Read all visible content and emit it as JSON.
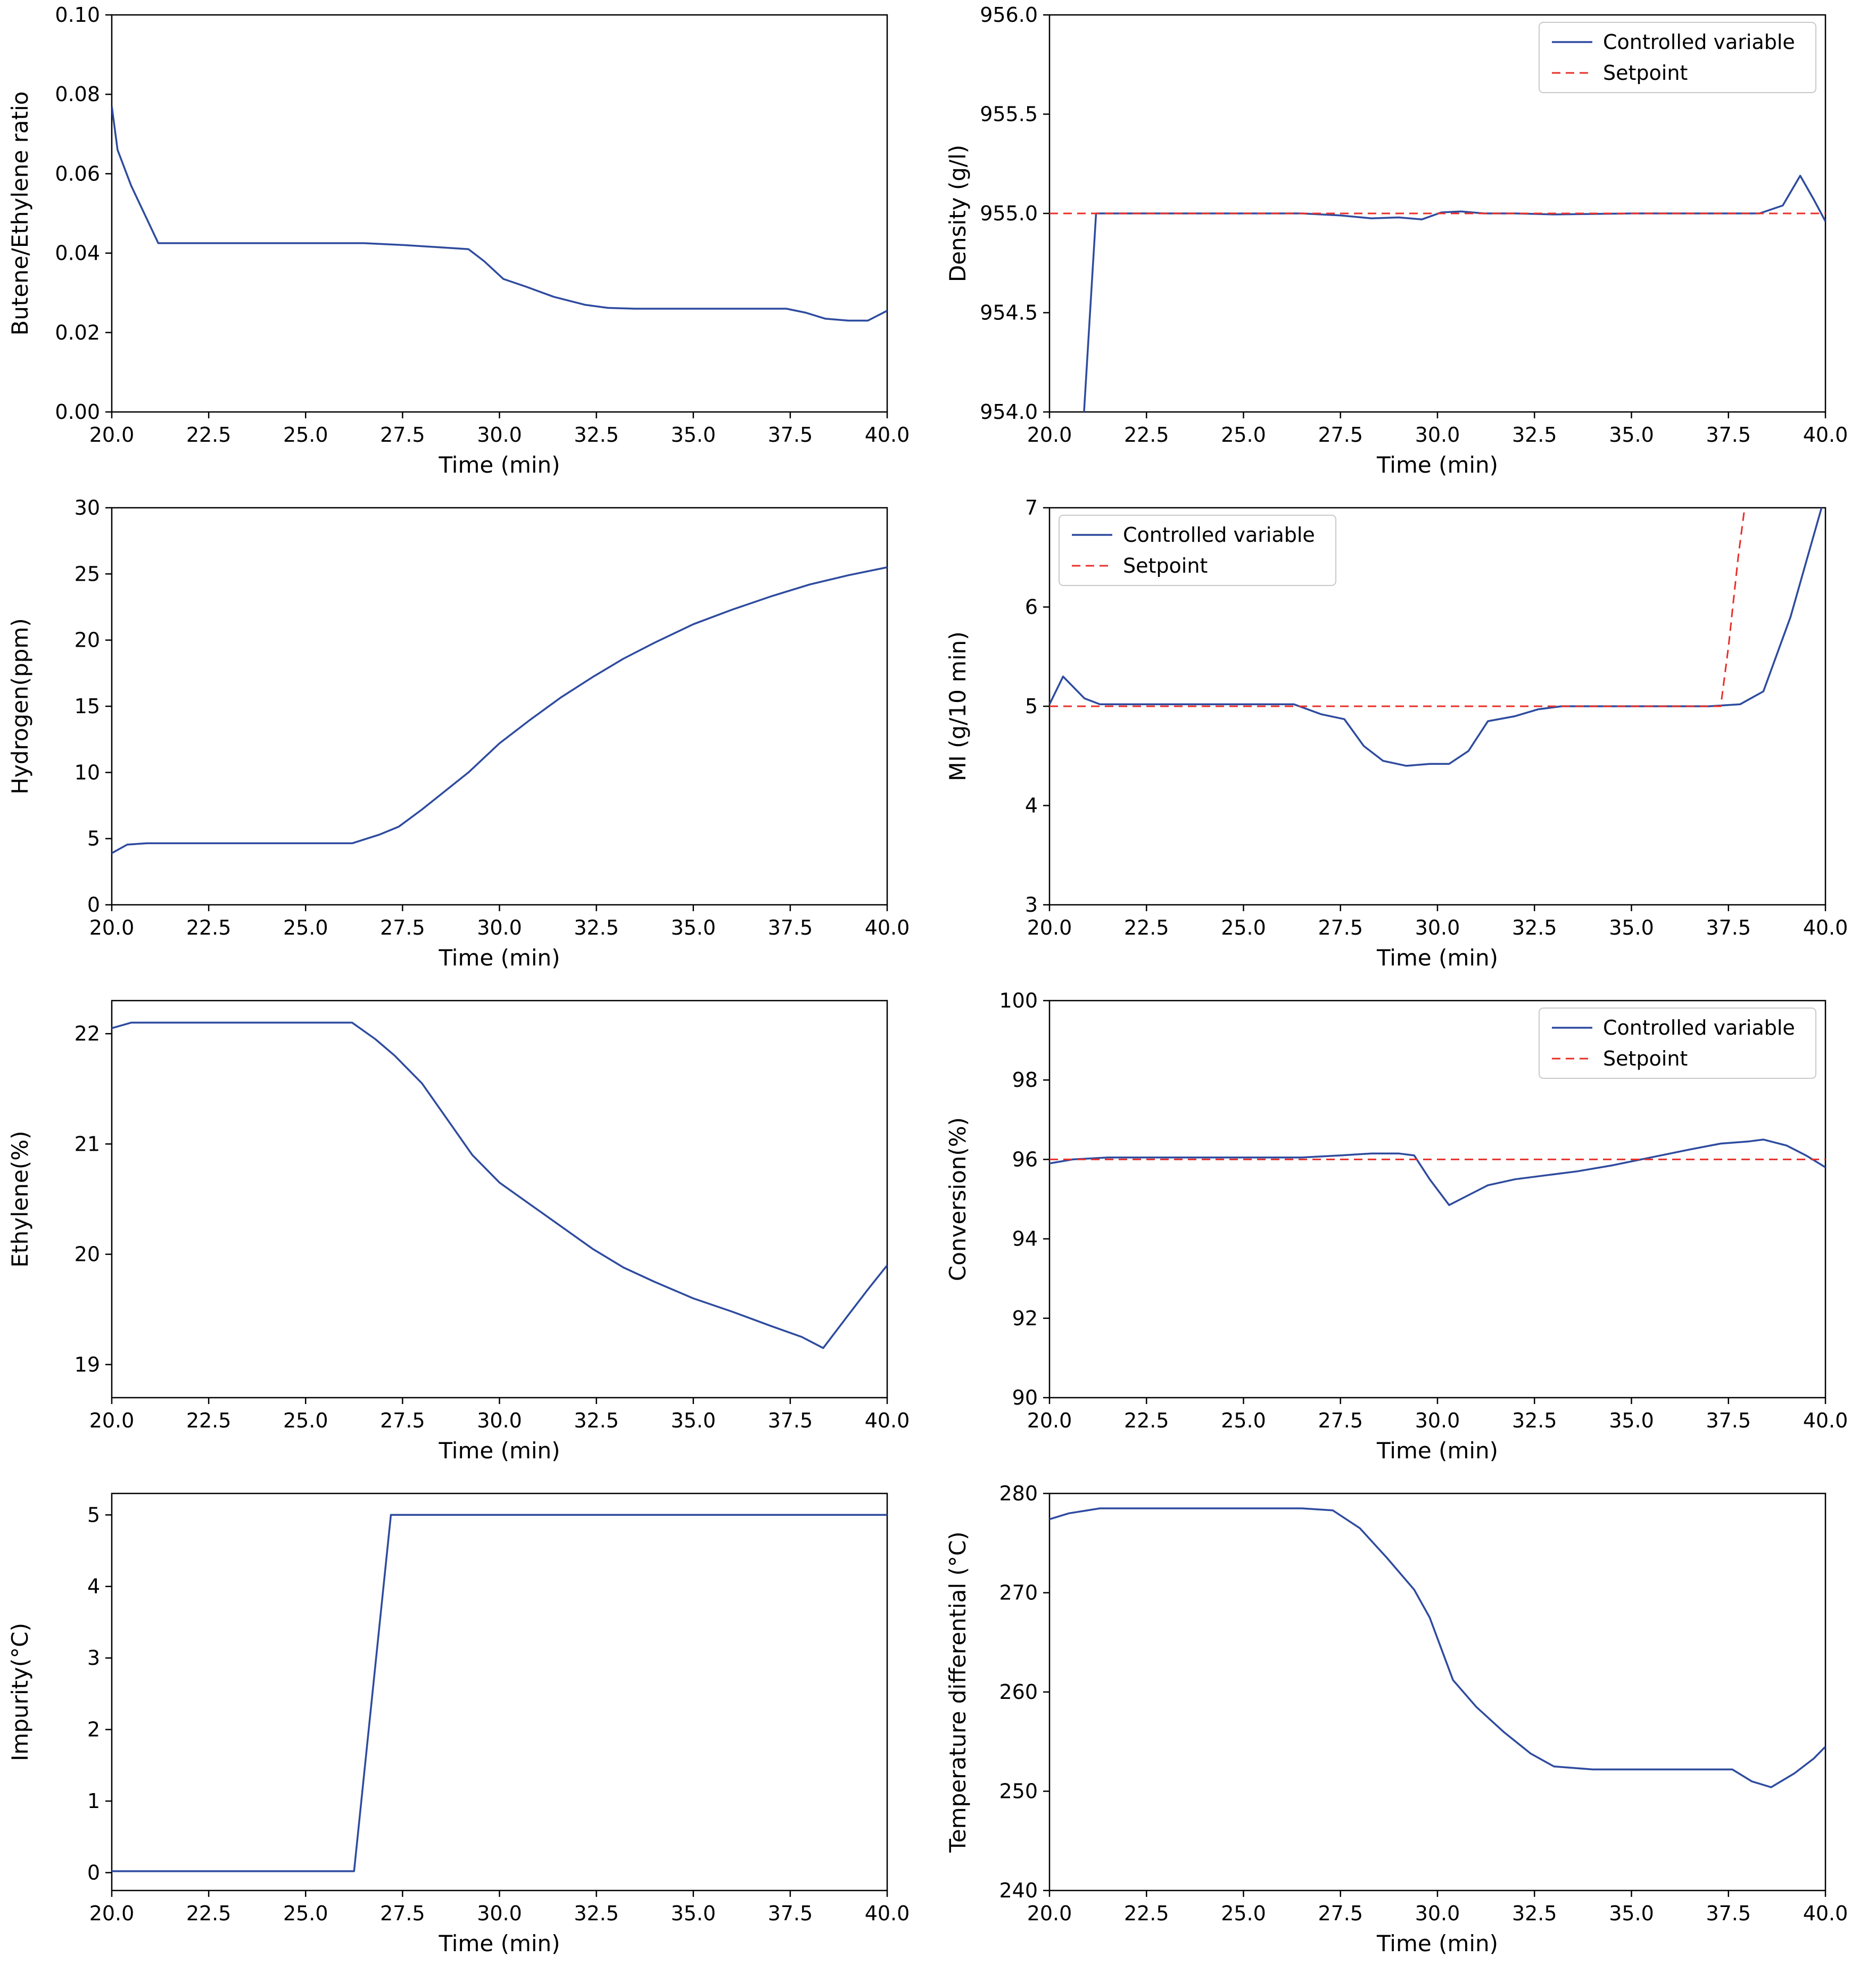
{
  "page": {
    "background": "#ffffff"
  },
  "chart_style": {
    "line_color": "#2e4b9f",
    "setpoint_color": "#e8302a",
    "axis_color": "#000000",
    "legend_border": "#c9c9c9"
  },
  "chart_data": [
    {
      "type": "line",
      "title": "",
      "xlabel": "Time (min)",
      "ylabel": "Butene/Ethylene ratio",
      "xlim": [
        20,
        40
      ],
      "ylim": [
        0,
        0.1
      ],
      "xticks": [
        "20.0",
        "22.5",
        "25.0",
        "27.5",
        "30.0",
        "32.5",
        "35.0",
        "37.5",
        "40.0"
      ],
      "yticks": [
        "0.00",
        "0.02",
        "0.04",
        "0.06",
        "0.08",
        "0.10"
      ],
      "grid": false,
      "legend": null,
      "series": [
        {
          "name": "Controlled variable",
          "color": "#2e4b9f",
          "dash": false,
          "x": [
            20.0,
            20.15,
            20.5,
            21.2,
            22.5,
            25.0,
            26.5,
            27.6,
            28.4,
            29.2,
            29.6,
            30.1,
            30.7,
            31.4,
            32.2,
            32.8,
            33.5,
            35.0,
            36.0,
            37.4,
            37.9,
            38.4,
            39.0,
            39.5,
            40.0
          ],
          "y": [
            0.077,
            0.066,
            0.057,
            0.0425,
            0.0425,
            0.0425,
            0.0425,
            0.042,
            0.0415,
            0.041,
            0.038,
            0.0335,
            0.0315,
            0.029,
            0.027,
            0.0262,
            0.026,
            0.026,
            0.026,
            0.026,
            0.025,
            0.0235,
            0.023,
            0.023,
            0.0255
          ]
        }
      ]
    },
    {
      "type": "line",
      "title": "",
      "xlabel": "Time (min)",
      "ylabel": "Density (g/l)",
      "xlim": [
        20,
        40
      ],
      "ylim": [
        954.0,
        956.0
      ],
      "xticks": [
        "20.0",
        "22.5",
        "25.0",
        "27.5",
        "30.0",
        "32.5",
        "35.0",
        "37.5",
        "40.0"
      ],
      "yticks": [
        "954.0",
        "954.5",
        "955.0",
        "955.5",
        "956.0"
      ],
      "grid": false,
      "legend": {
        "position": "upper right",
        "entries": [
          "Controlled variable",
          "Setpoint"
        ]
      },
      "series": [
        {
          "name": "Controlled variable",
          "color": "#2e4b9f",
          "dash": false,
          "x": [
            20.75,
            21.2,
            22.5,
            25.0,
            26.5,
            27.5,
            28.3,
            29.0,
            29.6,
            30.1,
            30.6,
            31.2,
            32.0,
            33.0,
            35.0,
            37.0,
            38.3,
            38.9,
            39.35,
            39.7,
            40.0
          ],
          "y": [
            953.55,
            955.0,
            955.0,
            955.0,
            955.0,
            954.99,
            954.975,
            954.98,
            954.97,
            955.005,
            955.01,
            955.0,
            955.0,
            954.995,
            955.0,
            955.0,
            955.0,
            955.04,
            955.19,
            955.07,
            954.96
          ]
        },
        {
          "name": "Setpoint",
          "color": "#e8302a",
          "dash": true,
          "x": [
            20.0,
            40.0
          ],
          "y": [
            955.0,
            955.0
          ]
        }
      ]
    },
    {
      "type": "line",
      "title": "",
      "xlabel": "Time (min)",
      "ylabel": "Hydrogen(ppm)",
      "xlim": [
        20,
        40
      ],
      "ylim": [
        0,
        30
      ],
      "xticks": [
        "20.0",
        "22.5",
        "25.0",
        "27.5",
        "30.0",
        "32.5",
        "35.0",
        "37.5",
        "40.0"
      ],
      "yticks": [
        "0",
        "5",
        "10",
        "15",
        "20",
        "25",
        "30"
      ],
      "grid": false,
      "legend": null,
      "series": [
        {
          "name": "Controlled variable",
          "color": "#2e4b9f",
          "dash": false,
          "x": [
            20.0,
            20.4,
            20.9,
            22.0,
            24.0,
            26.2,
            26.9,
            27.4,
            28.0,
            28.6,
            29.2,
            30.0,
            30.8,
            31.6,
            32.4,
            33.2,
            34.0,
            35.0,
            36.0,
            37.0,
            38.0,
            39.0,
            40.0
          ],
          "y": [
            3.9,
            4.55,
            4.65,
            4.65,
            4.65,
            4.65,
            5.3,
            5.9,
            7.2,
            8.6,
            10.0,
            12.2,
            14.0,
            15.7,
            17.2,
            18.6,
            19.8,
            21.2,
            22.3,
            23.3,
            24.2,
            24.9,
            25.5
          ]
        }
      ]
    },
    {
      "type": "line",
      "title": "",
      "xlabel": "Time (min)",
      "ylabel": "MI (g/10 min)",
      "xlim": [
        20,
        40
      ],
      "ylim": [
        3,
        7
      ],
      "xticks": [
        "20.0",
        "22.5",
        "25.0",
        "27.5",
        "30.0",
        "32.5",
        "35.0",
        "37.5",
        "40.0"
      ],
      "yticks": [
        "3",
        "4",
        "5",
        "6",
        "7"
      ],
      "grid": false,
      "legend": {
        "position": "upper left",
        "entries": [
          "Controlled variable",
          "Setpoint"
        ]
      },
      "series": [
        {
          "name": "Controlled variable",
          "color": "#2e4b9f",
          "dash": false,
          "x": [
            20.0,
            20.35,
            20.9,
            21.3,
            22.5,
            25.0,
            26.3,
            27.0,
            27.6,
            28.1,
            28.6,
            29.2,
            29.8,
            30.3,
            30.8,
            31.3,
            32.0,
            32.6,
            33.2,
            34.0,
            35.5,
            37.0,
            37.8,
            38.4,
            39.1,
            39.5,
            39.9
          ],
          "y": [
            5.02,
            5.3,
            5.08,
            5.02,
            5.02,
            5.02,
            5.02,
            4.92,
            4.87,
            4.6,
            4.45,
            4.4,
            4.42,
            4.42,
            4.55,
            4.85,
            4.9,
            4.97,
            5.0,
            5.0,
            5.0,
            5.0,
            5.02,
            5.15,
            5.9,
            6.45,
            7.0
          ]
        },
        {
          "name": "Setpoint",
          "color": "#e8302a",
          "dash": true,
          "x": [
            20.0,
            37.3,
            37.5,
            37.75,
            37.95
          ],
          "y": [
            5.0,
            5.0,
            5.6,
            6.5,
            7.1
          ]
        }
      ]
    },
    {
      "type": "line",
      "title": "",
      "xlabel": "Time (min)",
      "ylabel": "Ethylene(%)",
      "xlim": [
        20,
        40
      ],
      "ylim": [
        18.7,
        22.3
      ],
      "xticks": [
        "20.0",
        "22.5",
        "25.0",
        "27.5",
        "30.0",
        "32.5",
        "35.0",
        "37.5",
        "40.0"
      ],
      "yticks": [
        "19",
        "20",
        "21",
        "22"
      ],
      "grid": false,
      "legend": null,
      "series": [
        {
          "name": "Controlled variable",
          "color": "#2e4b9f",
          "dash": false,
          "x": [
            20.0,
            20.5,
            22.0,
            24.0,
            26.2,
            26.8,
            27.3,
            28.0,
            28.7,
            29.3,
            30.0,
            30.8,
            31.6,
            32.4,
            33.2,
            34.0,
            35.0,
            36.0,
            37.0,
            37.8,
            38.35,
            39.0,
            39.5,
            40.0
          ],
          "y": [
            22.05,
            22.1,
            22.1,
            22.1,
            22.1,
            21.95,
            21.8,
            21.55,
            21.2,
            20.9,
            20.65,
            20.45,
            20.25,
            20.05,
            19.88,
            19.75,
            19.6,
            19.48,
            19.35,
            19.25,
            19.15,
            19.45,
            19.68,
            19.9
          ]
        }
      ]
    },
    {
      "type": "line",
      "title": "",
      "xlabel": "Time (min)",
      "ylabel": "Conversion(%)",
      "xlim": [
        20,
        40
      ],
      "ylim": [
        90,
        100
      ],
      "xticks": [
        "20.0",
        "22.5",
        "25.0",
        "27.5",
        "30.0",
        "32.5",
        "35.0",
        "37.5",
        "40.0"
      ],
      "yticks": [
        "90",
        "92",
        "94",
        "96",
        "98",
        "100"
      ],
      "grid": false,
      "legend": {
        "position": "upper right",
        "entries": [
          "Controlled variable",
          "Setpoint"
        ]
      },
      "series": [
        {
          "name": "Controlled variable",
          "color": "#2e4b9f",
          "dash": false,
          "x": [
            20.0,
            20.6,
            21.5,
            23.0,
            25.0,
            26.5,
            27.5,
            28.3,
            29.0,
            29.4,
            29.8,
            30.3,
            30.8,
            31.3,
            32.0,
            32.8,
            33.6,
            34.5,
            35.5,
            36.5,
            37.3,
            38.0,
            38.4,
            39.0,
            39.5,
            40.0
          ],
          "y": [
            95.9,
            96.0,
            96.05,
            96.05,
            96.05,
            96.05,
            96.1,
            96.15,
            96.15,
            96.1,
            95.5,
            94.85,
            95.1,
            95.35,
            95.5,
            95.6,
            95.7,
            95.85,
            96.05,
            96.25,
            96.4,
            96.45,
            96.5,
            96.35,
            96.1,
            95.8
          ]
        },
        {
          "name": "Setpoint",
          "color": "#e8302a",
          "dash": true,
          "x": [
            20.0,
            40.0
          ],
          "y": [
            96.0,
            96.0
          ]
        }
      ]
    },
    {
      "type": "line",
      "title": "",
      "xlabel": "Time (min)",
      "ylabel": "Impurity(°C)",
      "xlim": [
        20,
        40
      ],
      "ylim": [
        -0.25,
        5.3
      ],
      "xticks": [
        "20.0",
        "22.5",
        "25.0",
        "27.5",
        "30.0",
        "32.5",
        "35.0",
        "37.5",
        "40.0"
      ],
      "yticks": [
        "0",
        "1",
        "2",
        "3",
        "4",
        "5"
      ],
      "grid": false,
      "legend": null,
      "series": [
        {
          "name": "Controlled variable",
          "color": "#2e4b9f",
          "dash": false,
          "x": [
            20.0,
            26.25,
            27.2,
            30.0,
            35.0,
            40.0
          ],
          "y": [
            0.02,
            0.02,
            5.0,
            5.0,
            5.0,
            5.0
          ]
        }
      ]
    },
    {
      "type": "line",
      "title": "",
      "xlabel": "Time (min)",
      "ylabel": "Temperature differential (°C)",
      "xlim": [
        20,
        40
      ],
      "ylim": [
        240,
        280
      ],
      "xticks": [
        "20.0",
        "22.5",
        "25.0",
        "27.5",
        "30.0",
        "32.5",
        "35.0",
        "37.5",
        "40.0"
      ],
      "yticks": [
        "240",
        "250",
        "260",
        "270",
        "280"
      ],
      "grid": false,
      "legend": null,
      "series": [
        {
          "name": "Controlled variable",
          "color": "#2e4b9f",
          "dash": false,
          "x": [
            20.0,
            20.5,
            21.3,
            22.5,
            24.0,
            25.5,
            26.5,
            27.3,
            28.0,
            28.7,
            29.4,
            29.8,
            30.4,
            31.0,
            31.7,
            32.4,
            33.0,
            34.0,
            35.0,
            36.0,
            37.0,
            37.6,
            38.1,
            38.6,
            39.2,
            39.7,
            40.0
          ],
          "y": [
            277.4,
            278.0,
            278.5,
            278.5,
            278.5,
            278.5,
            278.5,
            278.3,
            276.5,
            273.5,
            270.3,
            267.5,
            261.2,
            258.5,
            256.0,
            253.8,
            252.5,
            252.2,
            252.2,
            252.2,
            252.2,
            252.2,
            251.0,
            250.4,
            251.8,
            253.3,
            254.5
          ]
        }
      ]
    }
  ]
}
